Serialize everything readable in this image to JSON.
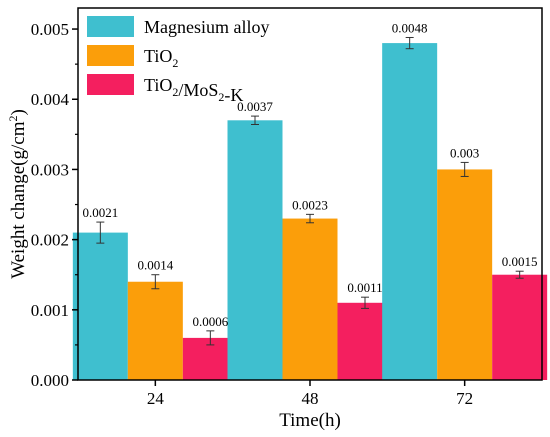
{
  "chart_data": {
    "type": "bar",
    "xlabel": "Time(h)",
    "ylabel_parts": {
      "main": "Weight change(g/cm",
      "sup": "2",
      "close": ")"
    },
    "ylim": [
      0,
      0.0053
    ],
    "yticks": [
      0.0,
      0.001,
      0.002,
      0.003,
      0.004,
      0.005
    ],
    "ytick_labels": [
      "0.000",
      "0.001",
      "0.002",
      "0.003",
      "0.004",
      "0.005"
    ],
    "categories": [
      "24",
      "48",
      "72"
    ],
    "legend_position": "top-left",
    "series": [
      {
        "name": "Magnesium alloy",
        "legend_parts": [
          {
            "t": "Magnesium alloy"
          }
        ],
        "color": "#3fbfcf",
        "values": [
          0.0021,
          0.0037,
          0.0048
        ],
        "errors": [
          0.00015,
          6e-05,
          8e-05
        ],
        "labels": [
          "0.0021",
          "0.0037",
          "0.0048"
        ]
      },
      {
        "name": "TiO2",
        "legend_parts": [
          {
            "t": "TiO"
          },
          {
            "t": "2",
            "sub": true
          }
        ],
        "color": "#fb9e0a",
        "values": [
          0.0014,
          0.0023,
          0.003
        ],
        "errors": [
          0.0001,
          6e-05,
          0.0001
        ],
        "labels": [
          "0.0014",
          "0.0023",
          "0.003"
        ]
      },
      {
        "name": "TiO2/MoS2-K",
        "legend_parts": [
          {
            "t": "TiO"
          },
          {
            "t": "2",
            "sub": true
          },
          {
            "t": "/MoS"
          },
          {
            "t": "2",
            "sub": true
          },
          {
            "t": "-K"
          }
        ],
        "color": "#f41f5f",
        "values": [
          0.0006,
          0.0011,
          0.0015
        ],
        "errors": [
          0.0001,
          8e-05,
          5e-05
        ],
        "labels": [
          "0.0006",
          "0.0011",
          "0.0015"
        ]
      }
    ]
  }
}
